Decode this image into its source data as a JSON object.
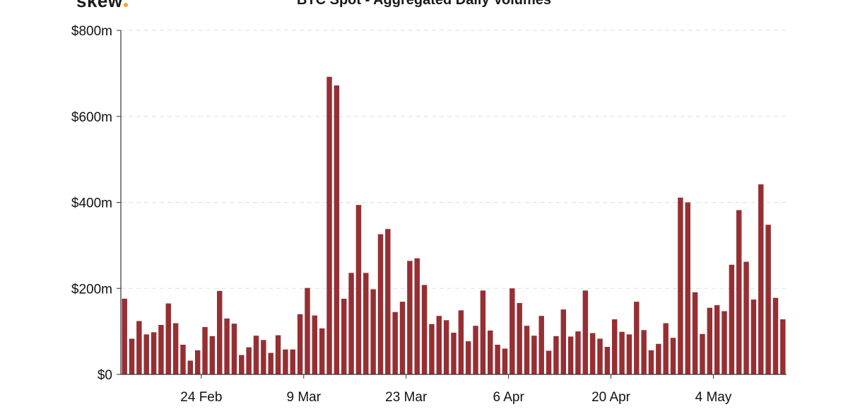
{
  "brand": {
    "logo_text": "skew",
    "accent_color": "#f5a623"
  },
  "chart_data": {
    "type": "bar",
    "title": "BTC Spot - Aggregated Daily Volumes",
    "xlabel": "",
    "ylabel": "",
    "bar_color": "#962f33",
    "grid": true,
    "ylim": [
      0,
      800
    ],
    "y_ticks": [
      {
        "value": 0,
        "label": "$0"
      },
      {
        "value": 200,
        "label": "$200m"
      },
      {
        "value": 400,
        "label": "$400m"
      },
      {
        "value": 600,
        "label": "$600m"
      },
      {
        "value": 800,
        "label": "$800m"
      }
    ],
    "x_ticks": [
      {
        "index": 11,
        "label": "24 Feb"
      },
      {
        "index": 25,
        "label": "9 Mar"
      },
      {
        "index": 39,
        "label": "23 Mar"
      },
      {
        "index": 53,
        "label": "6 Apr"
      },
      {
        "index": 67,
        "label": "20 Apr"
      },
      {
        "index": 81,
        "label": "4 May"
      }
    ],
    "values": [
      176,
      83,
      124,
      93,
      98,
      115,
      165,
      119,
      69,
      32,
      56,
      110,
      89,
      194,
      130,
      118,
      45,
      63,
      90,
      80,
      50,
      91,
      58,
      58,
      140,
      201,
      137,
      107,
      692,
      672,
      176,
      236,
      394,
      236,
      198,
      326,
      338,
      145,
      169,
      264,
      270,
      208,
      117,
      136,
      126,
      97,
      149,
      77,
      113,
      195,
      102,
      69,
      60,
      200,
      166,
      113,
      90,
      136,
      55,
      89,
      151,
      88,
      100,
      195,
      96,
      83,
      64,
      128,
      99,
      93,
      169,
      103,
      56,
      71,
      119,
      85,
      411,
      400,
      191,
      94,
      155,
      161,
      147,
      255,
      382,
      262,
      174,
      442,
      348,
      178,
      128
    ]
  }
}
